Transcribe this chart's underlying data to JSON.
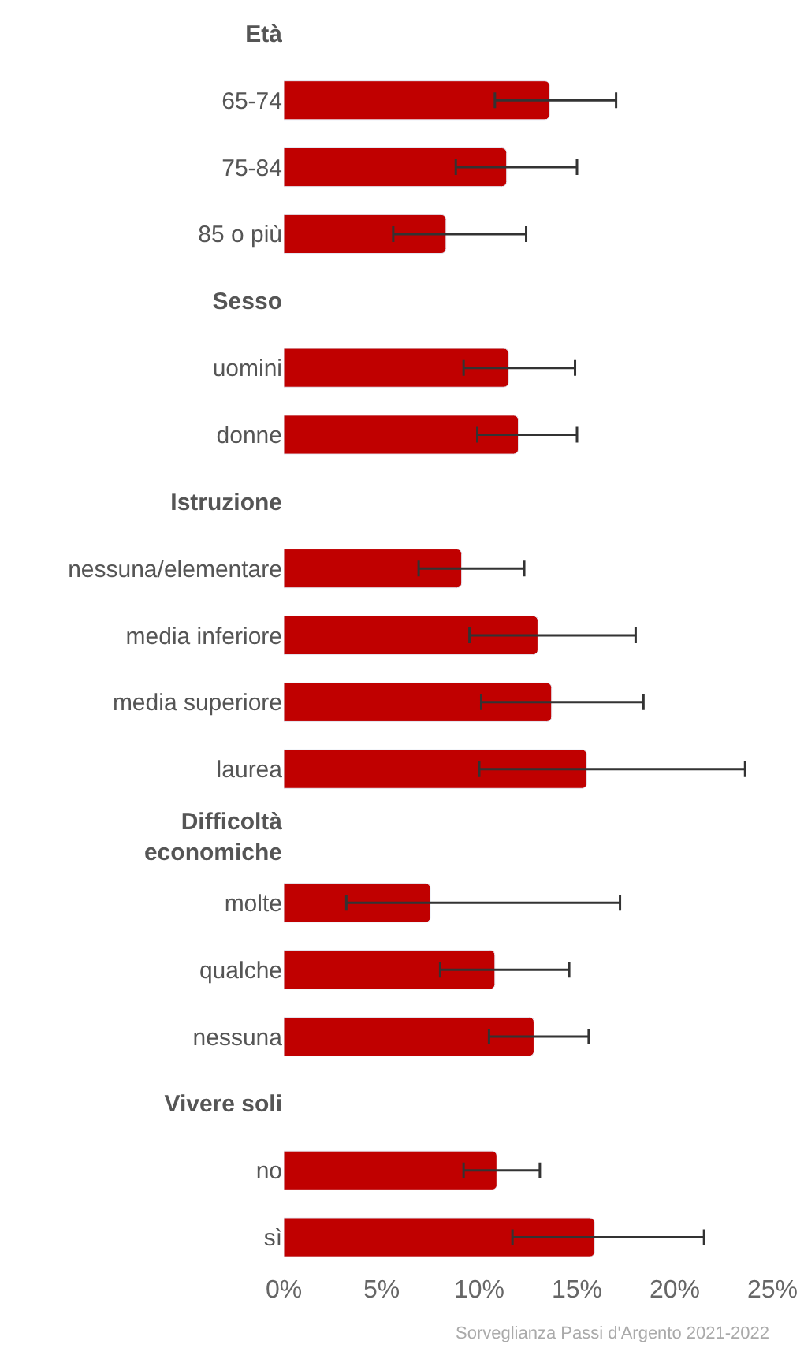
{
  "chart_data": {
    "type": "bar",
    "orientation": "horizontal",
    "categories": [
      "Età",
      "65-74",
      "75-84",
      "85 o più",
      "Sesso",
      "uomini",
      "donne",
      "Istruzione",
      "nessuna/elementare",
      "media inferiore",
      "media superiore",
      "laurea",
      "Difficoltà\neconomiche",
      "molte",
      "qualche",
      "nessuna",
      "Vivere soli",
      "no",
      "sì"
    ],
    "values": [
      null,
      13.6,
      11.4,
      8.3,
      null,
      11.5,
      12.0,
      null,
      9.1,
      13.0,
      13.7,
      15.5,
      null,
      7.5,
      10.8,
      12.8,
      null,
      10.9,
      15.9
    ],
    "errors": [
      null,
      [
        10.8,
        17.0
      ],
      [
        8.8,
        15.0
      ],
      [
        5.6,
        12.4
      ],
      null,
      [
        9.2,
        14.9
      ],
      [
        9.9,
        15.0
      ],
      null,
      [
        6.9,
        12.3
      ],
      [
        9.5,
        18.0
      ],
      [
        10.1,
        18.4
      ],
      [
        10.0,
        23.6
      ],
      null,
      [
        3.2,
        17.2
      ],
      [
        8.0,
        14.6
      ],
      [
        10.5,
        15.6
      ],
      null,
      [
        9.2,
        13.1
      ],
      [
        11.7,
        21.5
      ]
    ],
    "color": "#c00000",
    "xlim": [
      0,
      25
    ],
    "xticks": [
      {
        "value": 0,
        "label": "0%"
      },
      {
        "value": 5,
        "label": "5%"
      },
      {
        "value": 10,
        "label": "10%"
      },
      {
        "value": 15,
        "label": "15%"
      },
      {
        "value": 20,
        "label": "20%"
      },
      {
        "value": 25,
        "label": "25%"
      }
    ],
    "annotations": [
      "Sorveglianza Passi d'Argento 2021-2022"
    ]
  }
}
